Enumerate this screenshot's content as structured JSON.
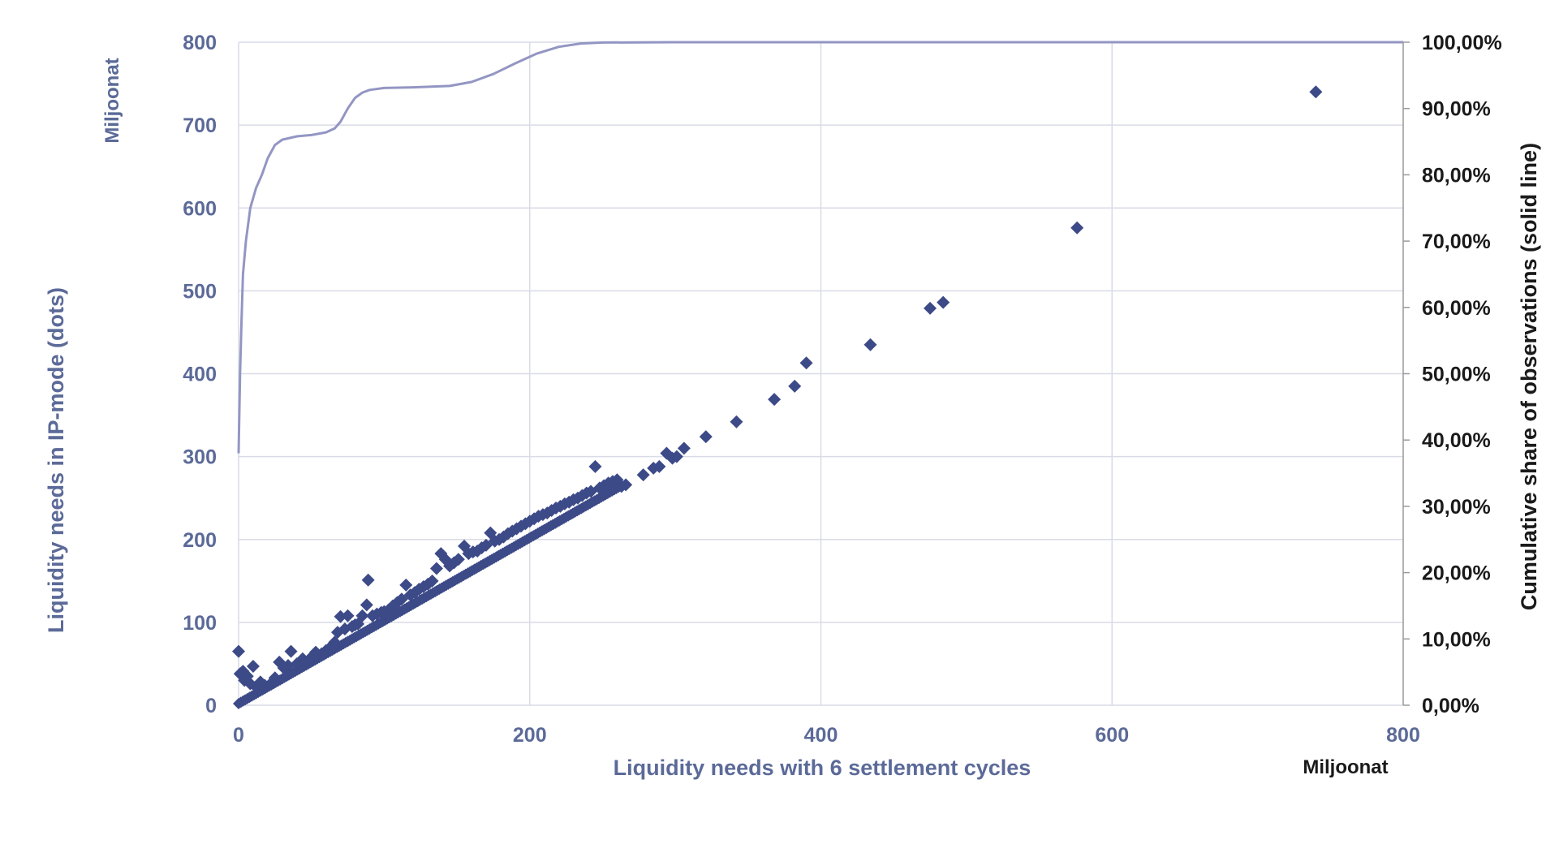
{
  "colors": {
    "primary": "#5b6a98",
    "points": "#3d4a88",
    "curve": "#9396c3",
    "grid": "#d9dbe6",
    "dark": "#1a1a1a"
  },
  "chart_data": {
    "type": "scatter",
    "xlabel": "Liquidity needs with 6 settlement cycles",
    "ylabel": "Liquidity needs in IP-mode (dots)",
    "y2label": "Cumulative share of observations (solid line)",
    "x_unit": "Miljoonat",
    "y_unit": "Miljoonat",
    "xlim": [
      0,
      800
    ],
    "ylim": [
      0,
      800
    ],
    "y2lim": [
      0,
      100
    ],
    "x_ticks": [
      "0",
      "200",
      "400",
      "600",
      "800"
    ],
    "y_ticks": [
      "0",
      "100",
      "200",
      "300",
      "400",
      "500",
      "600",
      "700",
      "800"
    ],
    "y2_ticks": [
      "0,00%",
      "10,00%",
      "20,00%",
      "30,00%",
      "40,00%",
      "50,00%",
      "60,00%",
      "70,00%",
      "80,00%",
      "90,00%",
      "100,00%"
    ],
    "grid": true,
    "series": [
      {
        "marker": "diamond",
        "points": [
          [
            0,
            65
          ],
          [
            1,
            38
          ],
          [
            3,
            41
          ],
          [
            6,
            35
          ],
          [
            10,
            47
          ],
          [
            4,
            30
          ],
          [
            8,
            26
          ],
          [
            12,
            22
          ],
          [
            15,
            28
          ],
          [
            18,
            24
          ],
          [
            22,
            26
          ],
          [
            25,
            33
          ],
          [
            28,
            52
          ],
          [
            31,
            45
          ],
          [
            34,
            48
          ],
          [
            36,
            65
          ],
          [
            40,
            50
          ],
          [
            44,
            56
          ],
          [
            47,
            52
          ],
          [
            50,
            58
          ],
          [
            53,
            64
          ],
          [
            57,
            62
          ],
          [
            60,
            66
          ],
          [
            63,
            70
          ],
          [
            66,
            76
          ],
          [
            68,
            88
          ],
          [
            70,
            107
          ],
          [
            73,
            92
          ],
          [
            75,
            108
          ],
          [
            78,
            95
          ],
          [
            80,
            97
          ],
          [
            82,
            98
          ],
          [
            85,
            108
          ],
          [
            88,
            121
          ],
          [
            89,
            151
          ],
          [
            92,
            108
          ],
          [
            95,
            110
          ],
          [
            98,
            112
          ],
          [
            100,
            113
          ],
          [
            103,
            115
          ],
          [
            106,
            120
          ],
          [
            109,
            124
          ],
          [
            112,
            128
          ],
          [
            115,
            145
          ],
          [
            118,
            133
          ],
          [
            121,
            136
          ],
          [
            124,
            140
          ],
          [
            127,
            143
          ],
          [
            130,
            146
          ],
          [
            133,
            150
          ],
          [
            136,
            165
          ],
          [
            139,
            183
          ],
          [
            142,
            176
          ],
          [
            145,
            168
          ],
          [
            148,
            172
          ],
          [
            151,
            176
          ],
          [
            155,
            192
          ],
          [
            158,
            183
          ],
          [
            161,
            185
          ],
          [
            164,
            186
          ],
          [
            167,
            190
          ],
          [
            170,
            193
          ],
          [
            173,
            208
          ],
          [
            176,
            198
          ],
          [
            179,
            200
          ],
          [
            182,
            203
          ],
          [
            185,
            207
          ],
          [
            188,
            210
          ],
          [
            191,
            213
          ],
          [
            194,
            216
          ],
          [
            197,
            219
          ],
          [
            200,
            222
          ],
          [
            203,
            225
          ],
          [
            206,
            228
          ],
          [
            209,
            230
          ],
          [
            212,
            232
          ],
          [
            215,
            235
          ],
          [
            218,
            238
          ],
          [
            221,
            240
          ],
          [
            224,
            243
          ],
          [
            227,
            245
          ],
          [
            230,
            248
          ],
          [
            233,
            250
          ],
          [
            236,
            253
          ],
          [
            239,
            256
          ],
          [
            242,
            258
          ],
          [
            245,
            288
          ],
          [
            248,
            262
          ],
          [
            251,
            265
          ],
          [
            254,
            268
          ],
          [
            257,
            270
          ],
          [
            260,
            272
          ],
          [
            263,
            264
          ],
          [
            266,
            266
          ],
          [
            278,
            278
          ],
          [
            285,
            286
          ],
          [
            289,
            288
          ],
          [
            294,
            304
          ],
          [
            298,
            298
          ],
          [
            301,
            300
          ],
          [
            306,
            310
          ],
          [
            321,
            324
          ],
          [
            342,
            342
          ],
          [
            368,
            369
          ],
          [
            382,
            385
          ],
          [
            390,
            413
          ],
          [
            434,
            435
          ],
          [
            475,
            479
          ],
          [
            484,
            486
          ],
          [
            576,
            576
          ],
          [
            740,
            740
          ]
        ]
      },
      {
        "line": "cumulative share",
        "x": [
          0,
          1,
          2,
          3,
          5,
          8,
          12,
          16,
          20,
          25,
          30,
          40,
          50,
          60,
          66,
          70,
          75,
          80,
          85,
          90,
          100,
          120,
          145,
          160,
          175,
          190,
          205,
          220,
          235,
          250,
          300,
          400,
          500,
          600,
          700,
          800
        ],
        "y": [
          38,
          50,
          58,
          65,
          70,
          75,
          78,
          80,
          82.5,
          84.5,
          85.3,
          85.8,
          86,
          86.4,
          87,
          88,
          90,
          91.6,
          92.4,
          92.8,
          93.1,
          93.2,
          93.4,
          94,
          95.2,
          96.8,
          98.3,
          99.3,
          99.8,
          99.95,
          100,
          100,
          100,
          100,
          100,
          100
        ]
      }
    ]
  }
}
